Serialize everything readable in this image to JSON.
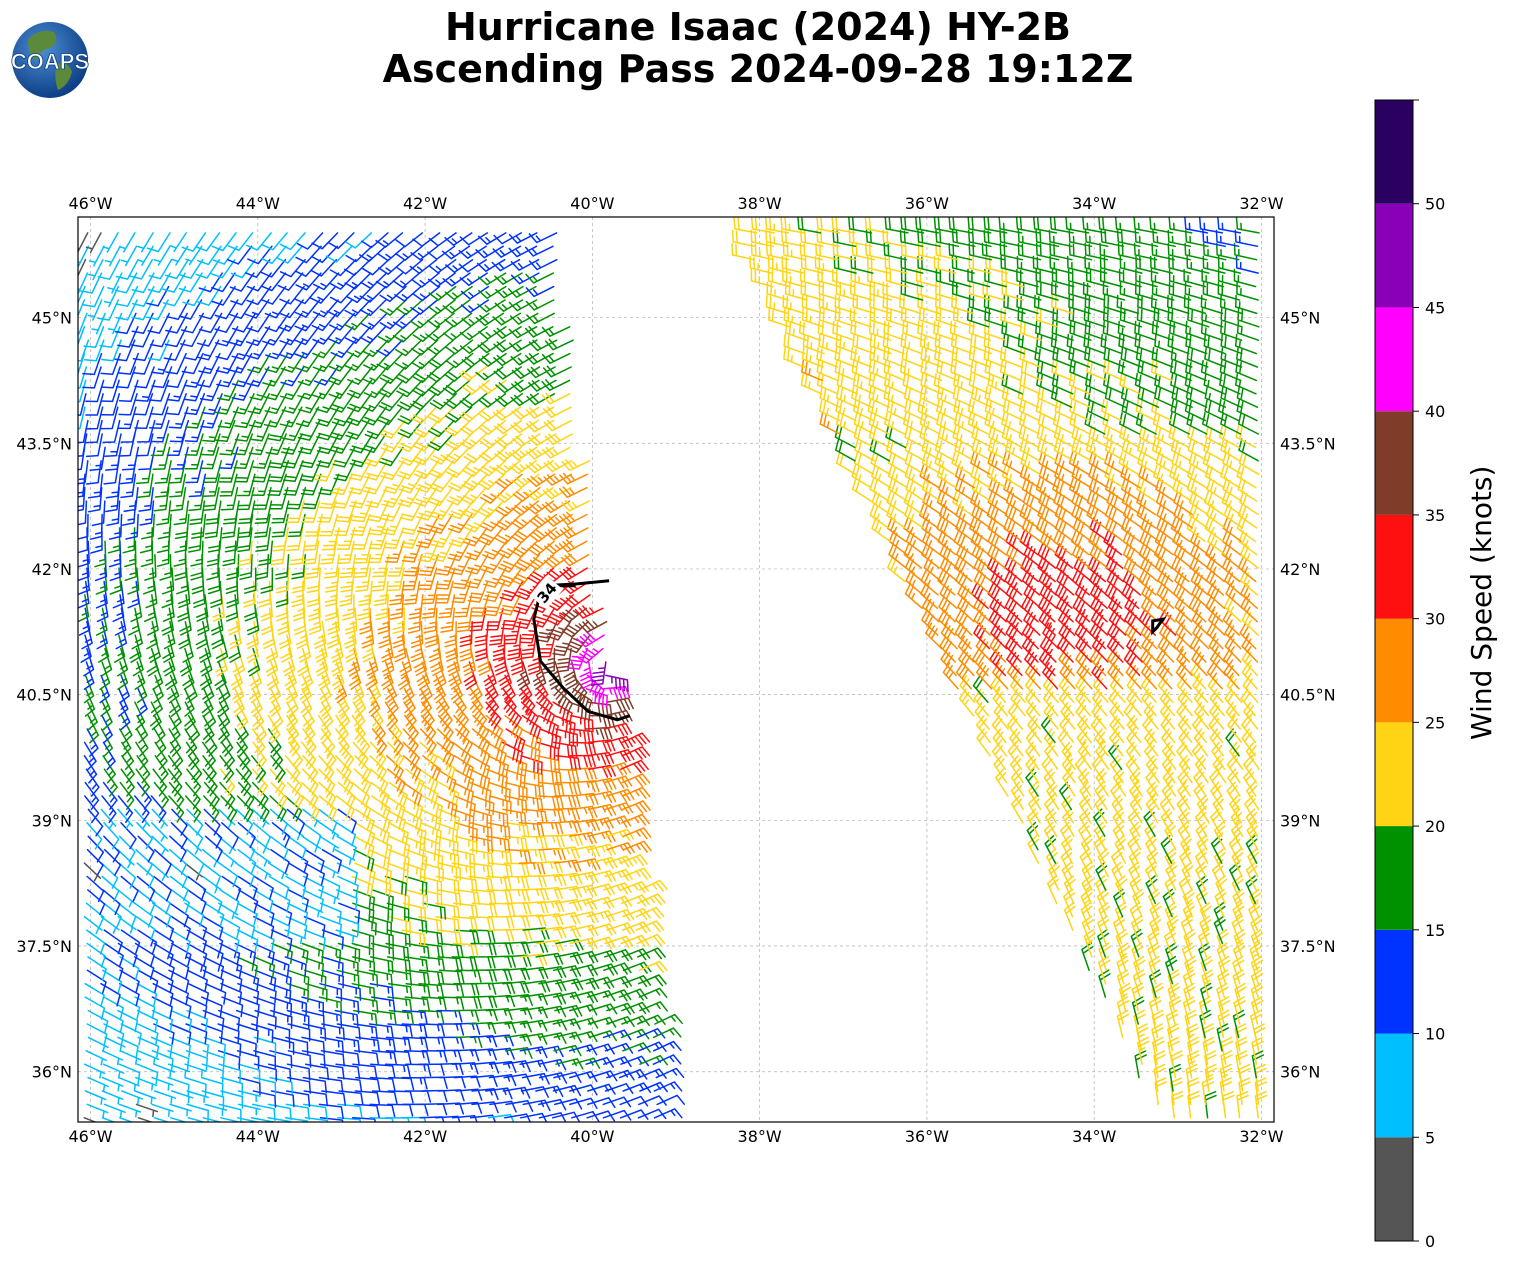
{
  "title": {
    "line1": "Hurricane Isaac (2024) HY-2B",
    "line2": "Ascending Pass 2024-09-28 19:12Z"
  },
  "logo": {
    "text": "COAPS",
    "ocean_color": "#1f5fa8",
    "land_color": "#4a7a3a"
  },
  "map": {
    "lon_range": [
      -46.15,
      -31.85
    ],
    "lat_range": [
      35.4,
      46.2
    ],
    "lon_ticks": [
      "46°W",
      "44°W",
      "42°W",
      "40°W",
      "38°W",
      "36°W",
      "34°W",
      "32°W"
    ],
    "lon_values": [
      -46,
      -44,
      -42,
      -40,
      -38,
      -36,
      -34,
      -32
    ],
    "lat_ticks": [
      "36°N",
      "37.5°N",
      "39°N",
      "40.5°N",
      "42°N",
      "43.5°N",
      "45°N"
    ],
    "lat_values": [
      36,
      37.5,
      39,
      40.5,
      42,
      43.5,
      45
    ],
    "grid": true,
    "contour_label": "34",
    "contour_34kt": [
      [
        -40.2,
        41.8
      ],
      [
        -40.6,
        41.8
      ],
      [
        -40.7,
        41.4
      ],
      [
        -40.62,
        40.9
      ],
      [
        -40.35,
        40.58
      ],
      [
        -40.05,
        40.3
      ],
      [
        -39.7,
        40.2
      ],
      [
        -39.55,
        40.25
      ]
    ],
    "contour_34kt_top": [
      [
        -40.6,
        41.8
      ],
      [
        -40.2,
        41.82
      ],
      [
        -39.8,
        41.86
      ]
    ],
    "contour_small": [
      [
        -33.3,
        41.25
      ],
      [
        -33.3,
        41.38
      ],
      [
        -33.18,
        41.4
      ],
      [
        -33.25,
        41.3
      ]
    ]
  },
  "colorbar": {
    "label": "Wind Speed (knots)",
    "ticks": [
      "0",
      "5",
      "10",
      "15",
      "20",
      "25",
      "30",
      "35",
      "40",
      "45",
      "50"
    ],
    "bounds": [
      0,
      5,
      10,
      15,
      20,
      25,
      30,
      35,
      40,
      45,
      50,
      55
    ],
    "colors": [
      "#555555",
      "#00bfff",
      "#0033ff",
      "#009100",
      "#ffd414",
      "#ff8c00",
      "#ff1010",
      "#7f3c28",
      "#ff00ff",
      "#8a00b8",
      "#2a0060"
    ]
  },
  "wind_field": {
    "center_lon": -39.75,
    "center_lat": 40.85,
    "left_swath_lon": [
      -46.0,
      -39.1
    ],
    "right_swath_lon": [
      -38.3,
      -32.0
    ]
  }
}
